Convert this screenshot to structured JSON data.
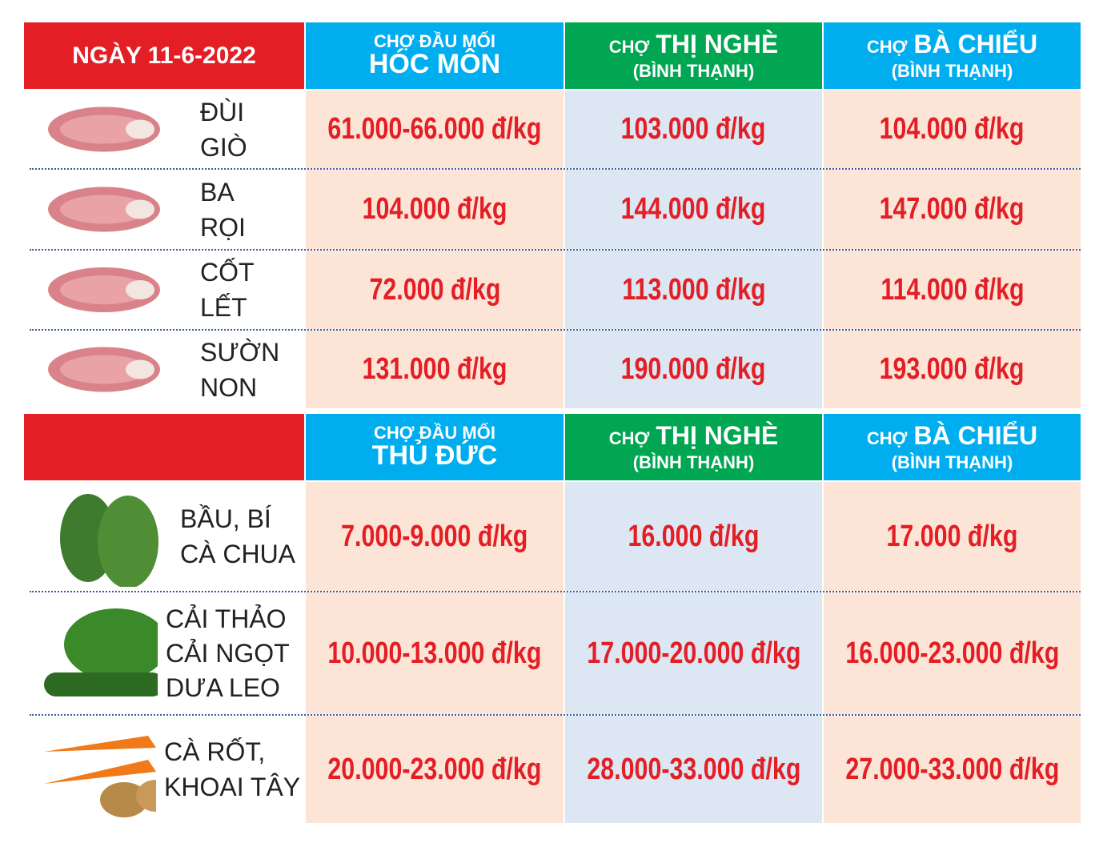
{
  "sections": [
    {
      "header": {
        "date": "NGÀY 11-6-2022",
        "markets": [
          {
            "prefix": "CHỢ ĐẦU MỐI",
            "name": "HÓC MÔN"
          },
          {
            "prefix": "CHỢ",
            "name": "THỊ NGHÈ",
            "sub": "(BÌNH THẠNH)"
          },
          {
            "prefix": "CHỢ",
            "name": "BÀ CHIỂU",
            "sub": "(BÌNH THẠNH)"
          }
        ]
      },
      "rows": [
        {
          "label": [
            "ĐÙI",
            "GIÒ"
          ],
          "prices": [
            "61.000-66.000 đ/kg",
            "103.000 đ/kg",
            "104.000 đ/kg"
          ]
        },
        {
          "label": [
            "BA",
            "RỌI"
          ],
          "prices": [
            "104.000 đ/kg",
            "144.000 đ/kg",
            "147.000 đ/kg"
          ]
        },
        {
          "label": [
            "CỐT",
            "LẾT"
          ],
          "prices": [
            "72.000 đ/kg",
            "113.000 đ/kg",
            "114.000 đ/kg"
          ]
        },
        {
          "label": [
            "SƯỜN",
            "NON"
          ],
          "prices": [
            "131.000 đ/kg",
            "190.000 đ/kg",
            "193.000 đ/kg"
          ]
        }
      ]
    },
    {
      "header": {
        "markets": [
          {
            "prefix": "CHỢ ĐẦU MỐI",
            "name": "THỦ ĐỨC"
          },
          {
            "prefix": "CHỢ",
            "name": "THỊ NGHÈ",
            "sub": "(BÌNH THẠNH)"
          },
          {
            "prefix": "CHỢ",
            "name": "BÀ CHIỂU",
            "sub": "(BÌNH THẠNH)"
          }
        ]
      },
      "rows": [
        {
          "label": [
            "BẦU, BÍ",
            "CÀ CHUA"
          ],
          "prices": [
            "7.000-9.000 đ/kg",
            "16.000 đ/kg",
            "17.000 đ/kg"
          ]
        },
        {
          "label": [
            "CẢI THẢO",
            "CẢI NGỌT",
            "DƯA LEO"
          ],
          "prices": [
            "10.000-13.000 đ/kg",
            "17.000-20.000 đ/kg",
            "16.000-23.000 đ/kg"
          ]
        },
        {
          "label": [
            "CÀ RỐT,",
            "KHOAI TÂY"
          ],
          "prices": [
            "20.000-23.000 đ/kg",
            "28.000-33.000 đ/kg",
            "27.000-33.000 đ/kg"
          ]
        }
      ]
    }
  ]
}
